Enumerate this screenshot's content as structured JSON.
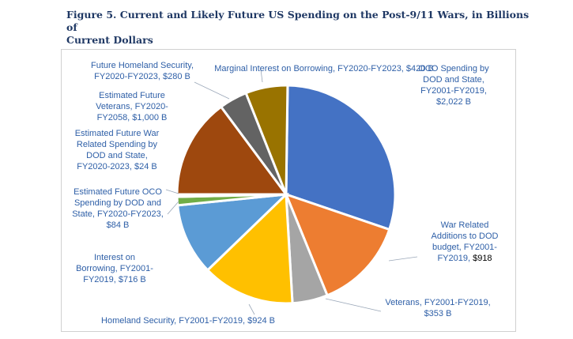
{
  "title": "Figure 5. Current and Likely Future US Spending on the Post-9/11 Wars, in Billions of Current Dollars",
  "title_line1": "Figure 5. Current and Likely Future US Spending on the Post-9/11 Wars, in Billions of",
  "title_line2": "Current Dollars",
  "chart_data": {
    "type": "pie",
    "title": "Figure 5. Current and Likely Future US Spending on the Post-9/11 Wars, in Billions of Current Dollars",
    "unit": "Billions of current dollars",
    "slices": [
      {
        "label": "OCO Spending by DOD and State, FY2001-FY2019, $2,022 B",
        "value": 2022,
        "color": "#4472c4"
      },
      {
        "label": "War Related Additions to DOD budget, FY2001-FY2019, $918",
        "value": 918,
        "color": "#ed7d31"
      },
      {
        "label": "Veterans, FY2001-FY2019, $353 B",
        "value": 353,
        "color": "#a5a5a5"
      },
      {
        "label": "Homeland Security, FY2001-FY2019, $924 B",
        "value": 924,
        "color": "#ffc000"
      },
      {
        "label": "Interest on Borrowing, FY2001-FY2019, $716 B",
        "value": 716,
        "color": "#5b9bd5"
      },
      {
        "label": "Estimated Future OCO Spending by DOD and State, FY2020-FY2023, $84 B",
        "value": 84,
        "color": "#70ad47"
      },
      {
        "label": "Estimated Future War Related Spending by DOD and State, FY2020-2023, $24 B",
        "value": 24,
        "color": "#264478"
      },
      {
        "label": "Estimated Future Veterans, FY2020-FY2058, $1,000 B",
        "value": 1000,
        "color": "#9e480e"
      },
      {
        "label": "Future Homeland Security, FY2020-FY2023, $280 B",
        "value": 280,
        "color": "#636363"
      },
      {
        "label": "Marginal Interest on Borrowing, FY2020-FY2023, $420 B",
        "value": 420,
        "color": "#997300"
      }
    ],
    "label_lines": [
      [
        "OCO Spending by",
        "DOD and State,",
        "FY2001-FY2019,",
        "$2,022 B"
      ],
      [
        "War Related",
        "Additions to DOD",
        "budget, FY2001-",
        "FY2019,  |$918"
      ],
      [
        "Veterans, FY2001-FY2019,",
        "$353 B"
      ],
      [
        "Homeland Security,  FY2001-FY2019,  $924 B"
      ],
      [
        "Interest on",
        "Borrowing, FY2001-",
        "FY2019,  $716 B"
      ],
      [
        "Estimated Future OCO",
        "Spending by DOD and",
        "State, FY2020-FY2023,",
        "$84 B"
      ],
      [
        "Estimated Future War",
        "Related Spending by",
        "DOD and State,",
        "FY2020-2023,  $24 B"
      ],
      [
        "Estimated Future",
        "Veterans, FY2020-",
        "FY2058,  $1,000 B"
      ],
      [
        "Future Homeland Security,",
        "FY2020-FY2023,  $280 B"
      ],
      [
        "Marginal Interest on Borrowing, FY2020-FY2023,  $420  B"
      ]
    ]
  }
}
